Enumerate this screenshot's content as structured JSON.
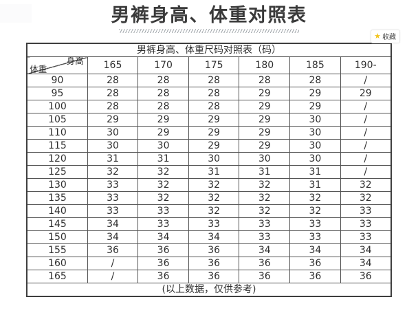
{
  "header": {
    "title": "男裤身高、体重对照表",
    "favorite": {
      "label": "收藏"
    }
  },
  "icons": {
    "star": "★"
  },
  "chart_data": {
    "type": "table",
    "title": "男裤身高、体重尺码对照表（码）",
    "corner": {
      "col_axis": "身高",
      "row_axis": "体重"
    },
    "columns": [
      "165",
      "170",
      "175",
      "180",
      "185",
      "190-"
    ],
    "rows": [
      {
        "weight": "90",
        "values": [
          "28",
          "28",
          "28",
          "28",
          "28",
          "/"
        ]
      },
      {
        "weight": "95",
        "values": [
          "28",
          "28",
          "28",
          "29",
          "29",
          "29"
        ]
      },
      {
        "weight": "100",
        "values": [
          "28",
          "28",
          "28",
          "29",
          "29",
          "/"
        ]
      },
      {
        "weight": "105",
        "values": [
          "29",
          "29",
          "29",
          "29",
          "30",
          "/"
        ]
      },
      {
        "weight": "110",
        "values": [
          "30",
          "29",
          "29",
          "29",
          "30",
          "/"
        ]
      },
      {
        "weight": "115",
        "values": [
          "30",
          "30",
          "29",
          "29",
          "30",
          "/"
        ]
      },
      {
        "weight": "120",
        "values": [
          "31",
          "31",
          "30",
          "30",
          "30",
          "/"
        ]
      },
      {
        "weight": "125",
        "values": [
          "32",
          "32",
          "31",
          "31",
          "31",
          "/"
        ]
      },
      {
        "weight": "130",
        "values": [
          "33",
          "32",
          "32",
          "32",
          "31",
          "32"
        ]
      },
      {
        "weight": "135",
        "values": [
          "33",
          "32",
          "32",
          "32",
          "32",
          "32"
        ]
      },
      {
        "weight": "140",
        "values": [
          "33",
          "33",
          "32",
          "32",
          "32",
          "33"
        ]
      },
      {
        "weight": "145",
        "values": [
          "34",
          "33",
          "33",
          "33",
          "33",
          "33"
        ]
      },
      {
        "weight": "150",
        "values": [
          "34",
          "34",
          "34",
          "33",
          "33",
          "33"
        ]
      },
      {
        "weight": "155",
        "values": [
          "36",
          "36",
          "36",
          "34",
          "34",
          "34"
        ]
      },
      {
        "weight": "160",
        "values": [
          "/",
          "36",
          "36",
          "36",
          "36",
          "34"
        ]
      },
      {
        "weight": "165",
        "values": [
          "/",
          "36",
          "36",
          "36",
          "36",
          "36"
        ]
      }
    ],
    "footer": "(以上数据，仅供参考)"
  },
  "colors": {
    "star": "#f3c51d",
    "border_outer": "#3e3e3e",
    "border_inner": "#545454",
    "title_text": "#3a3a3a"
  }
}
